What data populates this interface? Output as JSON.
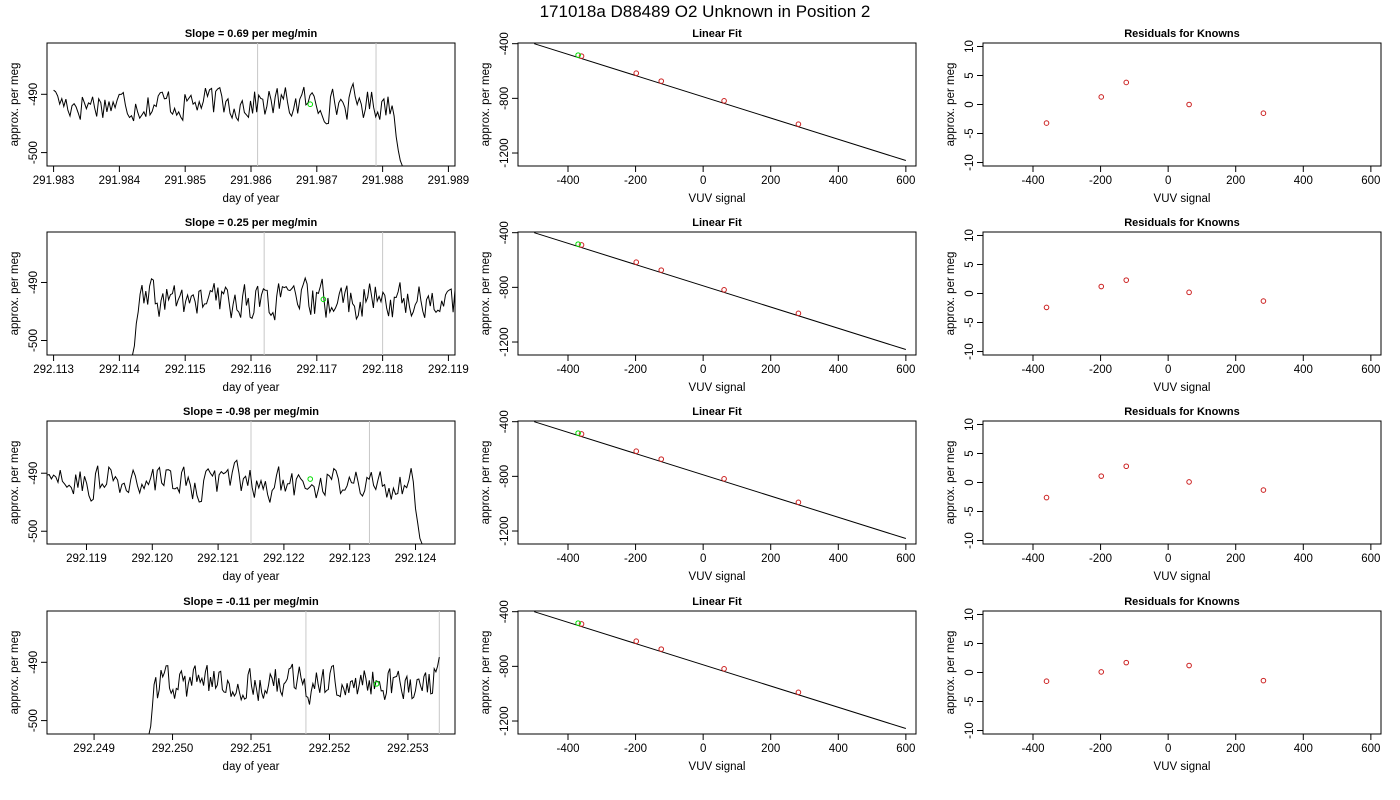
{
  "main_title": "171018a     D88489   O2 Unknown in Position  2",
  "chart_data": [
    {
      "type": "line",
      "title": "Slope =  0.69  per meg/min",
      "xlabel": "day of year",
      "ylabel": "approx. per meg",
      "xlim": [
        291.9829,
        291.9891
      ],
      "ylim": [
        -502.3,
        -481.2
      ],
      "xticks": [
        291.983,
        291.984,
        291.985,
        291.986,
        291.987,
        291.988,
        291.989
      ],
      "xtick_labels": [
        "291.983",
        "291.984",
        "291.985",
        "291.986",
        "291.987",
        "291.988",
        "291.989"
      ],
      "yticks": [
        -490,
        -500
      ],
      "ytick_labels": [
        "-490",
        "-500"
      ],
      "vlines": [
        291.9861,
        291.9879
      ],
      "series": [
        {
          "x": [
            291.983,
            291.9883
          ],
          "y_mean": -491.5,
          "noise": 1.3,
          "start_offset": -489.3,
          "end_drop": -503
        }
      ],
      "marker": {
        "x": 291.9869,
        "y": -491.7
      }
    },
    {
      "type": "scatter",
      "title": "Linear Fit",
      "xlabel": "VUV signal",
      "ylabel": "approx. per meg",
      "xlim": [
        -548,
        630
      ],
      "ylim": [
        -1295,
        -395
      ],
      "xticks": [
        -400,
        -200,
        0,
        200,
        400,
        600
      ],
      "xtick_labels": [
        "-400",
        "-200",
        "0",
        "200",
        "400",
        "600"
      ],
      "yticks": [
        -400,
        -800,
        -1200
      ],
      "ytick_labels": [
        "-400",
        "-800",
        "-1200"
      ],
      "fit_line": {
        "x": [
          -500,
          600
        ],
        "y": [
          -400,
          -1255
        ]
      },
      "points": {
        "x": [
          -360,
          -198,
          -124,
          62,
          282
        ],
        "y": [
          -491,
          -616,
          -674,
          -818,
          -989
        ]
      },
      "highlight": {
        "x": -370,
        "y": -484
      }
    },
    {
      "type": "scatter",
      "title": "Residuals for Knowns",
      "xlabel": "VUV signal",
      "ylabel": "approx. per meg",
      "xlim": [
        -548,
        630
      ],
      "ylim": [
        -10.6,
        10.6
      ],
      "xticks": [
        -400,
        -200,
        0,
        200,
        400,
        600
      ],
      "xtick_labels": [
        "-400",
        "-200",
        "0",
        "200",
        "400",
        "600"
      ],
      "yticks": [
        10,
        5,
        0,
        -5,
        -10
      ],
      "ytick_labels": [
        "10",
        "5",
        "0",
        "-5",
        "-10"
      ],
      "points": {
        "x": [
          -360,
          -198,
          -124,
          62,
          282
        ],
        "y": [
          -3.2,
          1.3,
          3.8,
          0.0,
          -1.5
        ]
      }
    },
    {
      "type": "line",
      "title": "Slope =  0.25  per meg/min",
      "xlabel": "day of year",
      "ylabel": "approx. per meg",
      "xlim": [
        292.1129,
        292.1191
      ],
      "ylim": [
        -502.5,
        -481.3
      ],
      "xticks": [
        292.113,
        292.114,
        292.115,
        292.116,
        292.117,
        292.118,
        292.119
      ],
      "xtick_labels": [
        "292.113",
        "292.114",
        "292.115",
        "292.116",
        "292.117",
        "292.118",
        "292.119"
      ],
      "yticks": [
        -490,
        -500
      ],
      "ytick_labels": [
        "-490",
        "-500"
      ],
      "vlines": [
        292.1162,
        292.118
      ],
      "series": [
        {
          "x": [
            292.1142,
            292.1191
          ],
          "y_mean": -493.2,
          "noise": 1.5,
          "start_offset": -503,
          "end_drop": null
        }
      ],
      "marker": {
        "x": 292.1171,
        "y": -492.9
      }
    },
    {
      "type": "scatter",
      "title": "Linear Fit",
      "xlabel": "VUV signal",
      "ylabel": "approx. per meg",
      "xlim": [
        -548,
        630
      ],
      "ylim": [
        -1295,
        -395
      ],
      "xticks": [
        -400,
        -200,
        0,
        200,
        400,
        600
      ],
      "xtick_labels": [
        "-400",
        "-200",
        "0",
        "200",
        "400",
        "600"
      ],
      "yticks": [
        -400,
        -800,
        -1200
      ],
      "ytick_labels": [
        "-400",
        "-800",
        "-1200"
      ],
      "fit_line": {
        "x": [
          -500,
          600
        ],
        "y": [
          -400,
          -1255
        ]
      },
      "points": {
        "x": [
          -360,
          -198,
          -124,
          62,
          282
        ],
        "y": [
          -490,
          -616,
          -674,
          -818,
          -990
        ]
      },
      "highlight": {
        "x": -370,
        "y": -484
      }
    },
    {
      "type": "scatter",
      "title": "Residuals for Knowns",
      "xlabel": "VUV signal",
      "ylabel": "approx. per meg",
      "xlim": [
        -548,
        630
      ],
      "ylim": [
        -10.6,
        10.6
      ],
      "xticks": [
        -400,
        -200,
        0,
        200,
        400,
        600
      ],
      "xtick_labels": [
        "-400",
        "-200",
        "0",
        "200",
        "400",
        "600"
      ],
      "yticks": [
        10,
        5,
        0,
        -5,
        -10
      ],
      "ytick_labels": [
        "10",
        "5",
        "0",
        "-5",
        "-10"
      ],
      "points": {
        "x": [
          -360,
          -198,
          -124,
          62,
          282
        ],
        "y": [
          -2.4,
          1.2,
          2.3,
          0.2,
          -1.3
        ]
      }
    },
    {
      "type": "line",
      "title": "Slope =  -0.98  per meg/min",
      "xlabel": "day of year",
      "ylabel": "approx. per meg",
      "xlim": [
        292.1184,
        292.1246
      ],
      "ylim": [
        -502.2,
        -481.0
      ],
      "xticks": [
        292.119,
        292.12,
        292.121,
        292.122,
        292.123,
        292.124
      ],
      "xtick_labels": [
        "292.119",
        "292.120",
        "292.121",
        "292.122",
        "292.123",
        "292.124"
      ],
      "yticks": [
        -490,
        -500
      ],
      "ytick_labels": [
        "-490",
        "-500"
      ],
      "vlines": [
        292.1215,
        292.1233
      ],
      "series": [
        {
          "x": [
            292.1184,
            292.1241
          ],
          "y_mean": -491.6,
          "noise": 1.4,
          "start_offset": -490.3,
          "end_drop": -503
        }
      ],
      "marker": {
        "x": 292.1224,
        "y": -491.0
      }
    },
    {
      "type": "scatter",
      "title": "Linear Fit",
      "xlabel": "VUV signal",
      "ylabel": "approx. per meg",
      "xlim": [
        -548,
        630
      ],
      "ylim": [
        -1295,
        -395
      ],
      "xticks": [
        -400,
        -200,
        0,
        200,
        400,
        600
      ],
      "xtick_labels": [
        "-400",
        "-200",
        "0",
        "200",
        "400",
        "600"
      ],
      "yticks": [
        -400,
        -800,
        -1200
      ],
      "ytick_labels": [
        "-400",
        "-800",
        "-1200"
      ],
      "fit_line": {
        "x": [
          -500,
          600
        ],
        "y": [
          -400,
          -1255
        ]
      },
      "points": {
        "x": [
          -360,
          -198,
          -124,
          62,
          282
        ],
        "y": [
          -490,
          -616,
          -674,
          -818,
          -990
        ]
      },
      "highlight": {
        "x": -370,
        "y": -484
      }
    },
    {
      "type": "scatter",
      "title": "Residuals for Knowns",
      "xlabel": "VUV signal",
      "ylabel": "approx. per meg",
      "xlim": [
        -548,
        630
      ],
      "ylim": [
        -10.6,
        10.6
      ],
      "xticks": [
        -400,
        -200,
        0,
        200,
        400,
        600
      ],
      "xtick_labels": [
        "-400",
        "-200",
        "0",
        "200",
        "400",
        "600"
      ],
      "yticks": [
        10,
        5,
        0,
        -5,
        -10
      ],
      "ytick_labels": [
        "10",
        "5",
        "0",
        "-5",
        "-10"
      ],
      "points": {
        "x": [
          -360,
          -198,
          -124,
          62,
          282
        ],
        "y": [
          -2.6,
          1.1,
          2.8,
          0.1,
          -1.3
        ]
      }
    },
    {
      "type": "line",
      "title": "Slope =  -0.11  per meg/min",
      "xlabel": "day of year",
      "ylabel": "approx. per meg",
      "xlim": [
        292.2484,
        292.2536
      ],
      "ylim": [
        -502.3,
        -481.2
      ],
      "xticks": [
        292.249,
        292.25,
        292.251,
        292.252,
        292.253
      ],
      "xtick_labels": [
        "292.249",
        "292.250",
        "292.251",
        "292.252",
        "292.253"
      ],
      "yticks": [
        -490,
        -500
      ],
      "ytick_labels": [
        "-490",
        "-500"
      ],
      "vlines": [
        292.2517,
        292.2534
      ],
      "series": [
        {
          "x": [
            292.2497,
            292.2534
          ],
          "y_mean": -493.8,
          "noise": 1.4,
          "start_offset": -503,
          "end_drop": -489.1
        }
      ],
      "marker": {
        "x": 292.2526,
        "y": -493.7
      }
    },
    {
      "type": "scatter",
      "title": "Linear Fit",
      "xlabel": "VUV signal",
      "ylabel": "approx. per meg",
      "xlim": [
        -548,
        630
      ],
      "ylim": [
        -1295,
        -395
      ],
      "xticks": [
        -400,
        -200,
        0,
        200,
        400,
        600
      ],
      "xtick_labels": [
        "-400",
        "-200",
        "0",
        "200",
        "400",
        "600"
      ],
      "yticks": [
        -400,
        -800,
        -1200
      ],
      "ytick_labels": [
        "-400",
        "-800",
        "-1200"
      ],
      "fit_line": {
        "x": [
          -500,
          600
        ],
        "y": [
          -400,
          -1255
        ]
      },
      "points": {
        "x": [
          -360,
          -198,
          -124,
          62,
          282
        ],
        "y": [
          -490,
          -616,
          -674,
          -818,
          -990
        ]
      },
      "highlight": {
        "x": -370,
        "y": -484
      }
    },
    {
      "type": "scatter",
      "title": "Residuals for Knowns",
      "xlabel": "VUV signal",
      "ylabel": "approx. per meg",
      "xlim": [
        -548,
        630
      ],
      "ylim": [
        -10.6,
        10.6
      ],
      "xticks": [
        -400,
        -200,
        0,
        200,
        400,
        600
      ],
      "xtick_labels": [
        "-400",
        "-200",
        "0",
        "200",
        "400",
        "600"
      ],
      "yticks": [
        10,
        5,
        0,
        -5,
        -10
      ],
      "ytick_labels": [
        "10",
        "5",
        "0",
        "-5",
        "-10"
      ],
      "points": {
        "x": [
          -360,
          -198,
          -124,
          62,
          282
        ],
        "y": [
          -1.5,
          0.1,
          1.7,
          1.2,
          -1.4
        ]
      }
    }
  ]
}
